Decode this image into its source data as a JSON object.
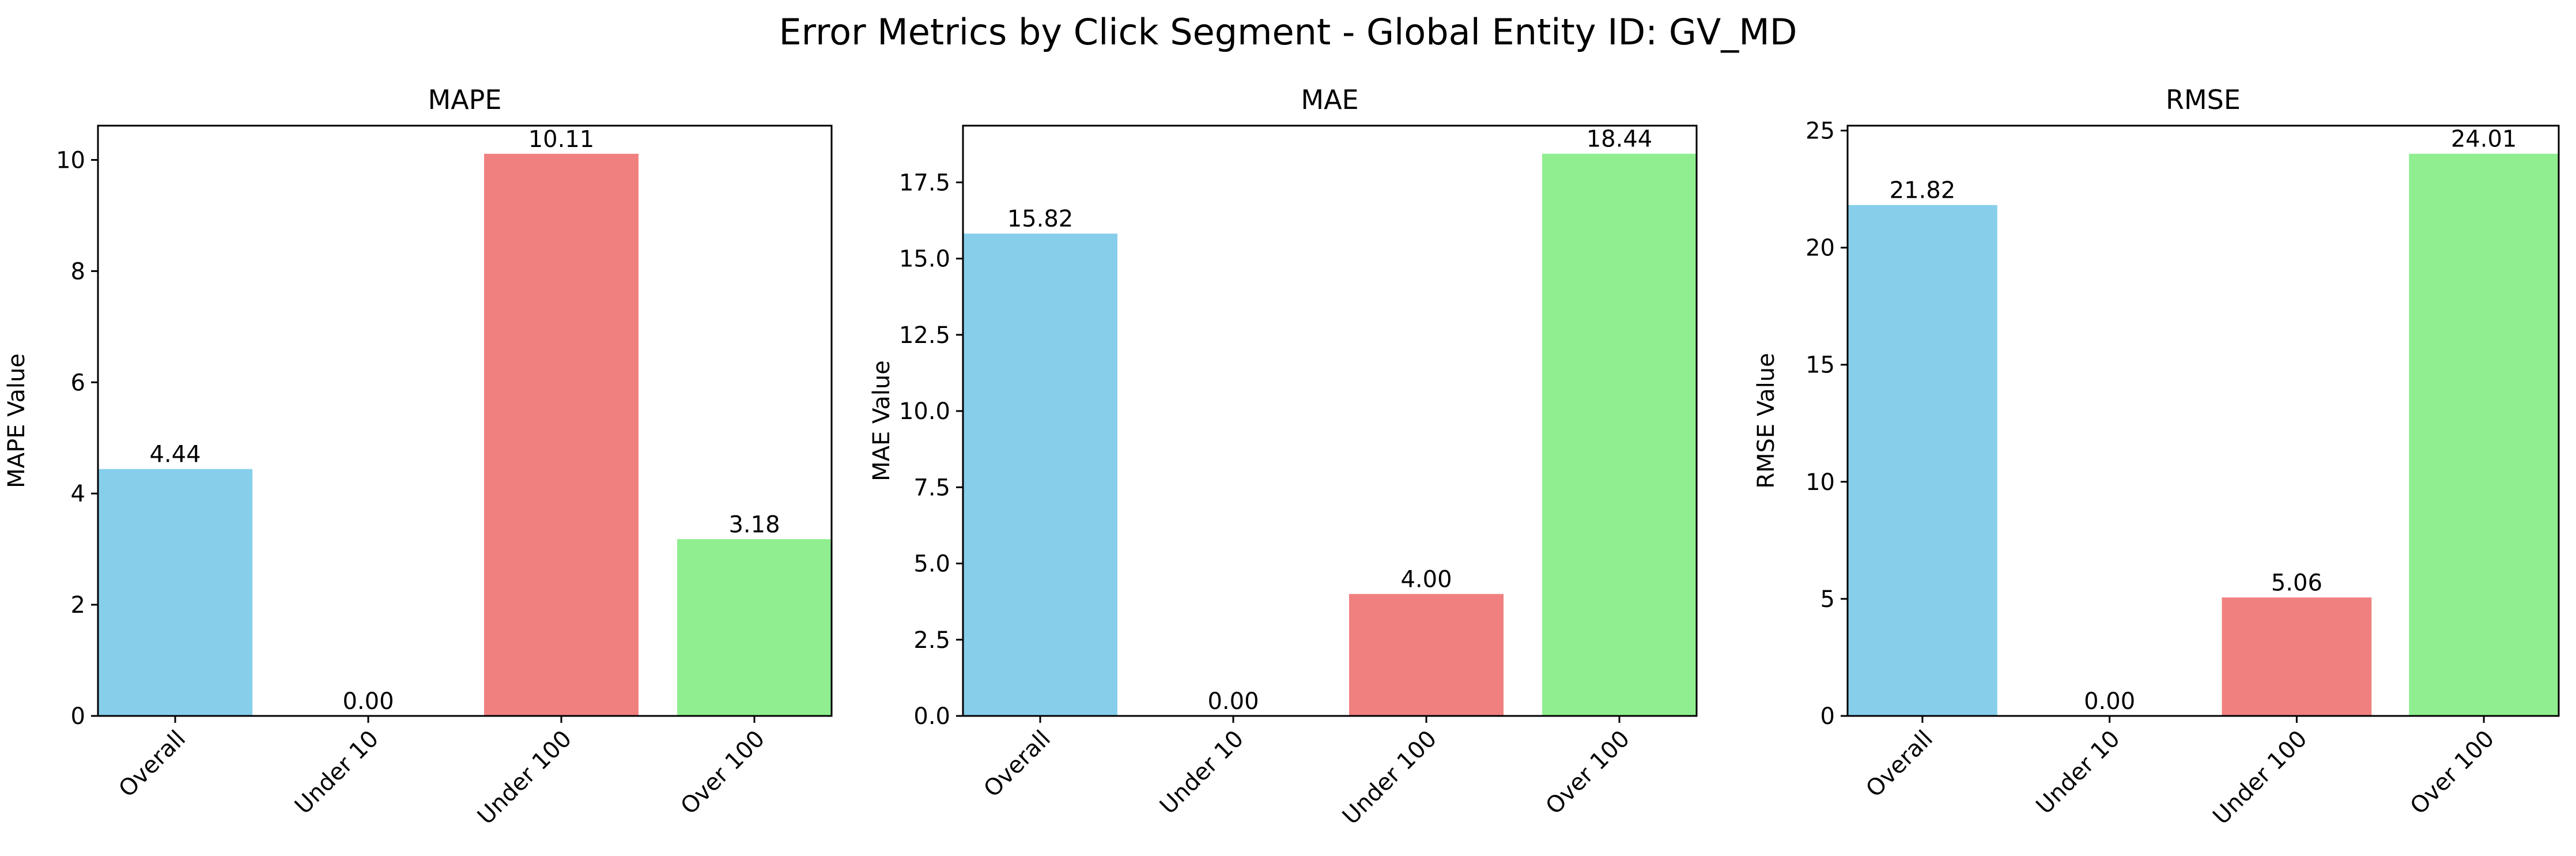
{
  "figure": {
    "title": "Error Metrics by Click Segment - Global Entity ID: GV_MD"
  },
  "chart_data": [
    {
      "type": "bar",
      "title": "MAPE",
      "xlabel": "",
      "ylabel": "MAPE Value",
      "categories": [
        "Overall",
        "Under 10",
        "Under 100",
        "Over 100"
      ],
      "values": [
        4.44,
        0.0,
        10.11,
        3.18
      ],
      "value_labels": [
        "4.44",
        "0.00",
        "10.11",
        "3.18"
      ],
      "colors": [
        "#87ceeb",
        "#87ceeb",
        "#f08080",
        "#90ee90"
      ],
      "ylim": [
        0,
        10.616
      ],
      "yticks": [
        0,
        2,
        4,
        6,
        8,
        10
      ],
      "ytick_labels": [
        "0",
        "2",
        "4",
        "6",
        "8",
        "10"
      ],
      "grid": false,
      "legend": "none"
    },
    {
      "type": "bar",
      "title": "MAE",
      "xlabel": "",
      "ylabel": "MAE Value",
      "categories": [
        "Overall",
        "Under 10",
        "Under 100",
        "Over 100"
      ],
      "values": [
        15.82,
        0.0,
        4.0,
        18.44
      ],
      "value_labels": [
        "15.82",
        "0.00",
        "4.00",
        "18.44"
      ],
      "colors": [
        "#87ceeb",
        "#87ceeb",
        "#f08080",
        "#90ee90"
      ],
      "ylim": [
        0,
        19.36
      ],
      "yticks": [
        0,
        2.5,
        5,
        7.5,
        10,
        12.5,
        15,
        17.5
      ],
      "ytick_labels": [
        "0.0",
        "2.5",
        "5.0",
        "7.5",
        "10.0",
        "12.5",
        "15.0",
        "17.5"
      ],
      "grid": false,
      "legend": "none"
    },
    {
      "type": "bar",
      "title": "RMSE",
      "xlabel": "",
      "ylabel": "RMSE Value",
      "categories": [
        "Overall",
        "Under 10",
        "Under 100",
        "Over 100"
      ],
      "values": [
        21.82,
        0.0,
        5.06,
        24.01
      ],
      "value_labels": [
        "21.82",
        "0.00",
        "5.06",
        "24.01"
      ],
      "colors": [
        "#87ceeb",
        "#87ceeb",
        "#f08080",
        "#90ee90"
      ],
      "ylim": [
        0,
        25.21
      ],
      "yticks": [
        0,
        5,
        10,
        15,
        20,
        25
      ],
      "ytick_labels": [
        "0",
        "5",
        "10",
        "15",
        "20",
        "25"
      ],
      "grid": false,
      "legend": "none"
    }
  ]
}
